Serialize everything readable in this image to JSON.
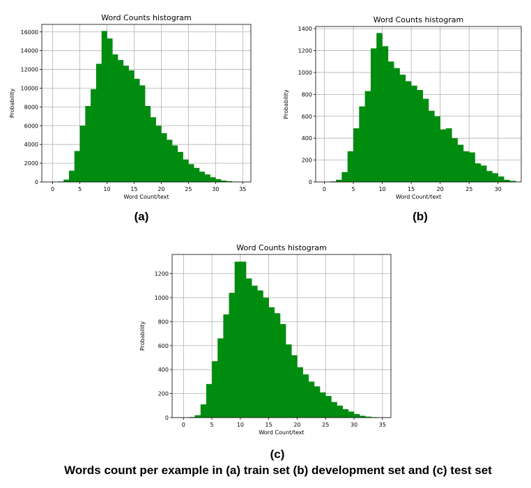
{
  "colors": {
    "bar": "#008c0f",
    "grid": "#b0b0b0",
    "frame": "#000000"
  },
  "panels": [
    {
      "label": "(a)"
    },
    {
      "label": "(b)"
    },
    {
      "label": "(c)"
    }
  ],
  "caption": "Words count per example in (a) train set (b) development set and (c) test set",
  "chart_data": [
    {
      "type": "bar",
      "title": "Word Counts histogram",
      "xlabel": "Word Count/text",
      "ylabel": "Probability",
      "grid": true,
      "xlim": [
        -2,
        36.5
      ],
      "ylim": [
        0,
        16800
      ],
      "xticks": [
        0,
        5,
        10,
        15,
        20,
        25,
        30,
        35
      ],
      "yticks": [
        0,
        2000,
        4000,
        6000,
        8000,
        10000,
        12000,
        14000,
        16000
      ],
      "bin_edges": [
        1,
        2,
        3,
        4,
        5,
        6,
        7,
        8,
        9,
        10,
        11,
        12,
        13,
        14,
        15,
        16,
        17,
        18,
        19,
        20,
        21,
        22,
        23,
        24,
        25,
        26,
        27,
        28,
        29,
        30,
        31,
        32,
        33,
        34,
        35
      ],
      "values": [
        50,
        250,
        1200,
        3300,
        6000,
        8100,
        9900,
        12600,
        16100,
        15300,
        13600,
        13000,
        12400,
        11900,
        11000,
        10300,
        8100,
        6900,
        6000,
        5200,
        4500,
        3900,
        3200,
        2400,
        1900,
        1500,
        1100,
        800,
        500,
        300,
        150,
        80,
        40,
        20
      ]
    },
    {
      "type": "bar",
      "title": "Word Counts histogram",
      "xlabel": "Word Count/text",
      "ylabel": "Probability",
      "grid": true,
      "xlim": [
        -1.5,
        34
      ],
      "ylim": [
        0,
        1420
      ],
      "xticks": [
        0,
        5,
        10,
        15,
        20,
        25,
        30
      ],
      "yticks": [
        0,
        200,
        400,
        600,
        800,
        1000,
        1200,
        1400
      ],
      "bin_edges": [
        1,
        2,
        3,
        4,
        5,
        6,
        7,
        8,
        9,
        10,
        11,
        12,
        13,
        14,
        15,
        16,
        17,
        18,
        19,
        20,
        21,
        22,
        23,
        24,
        25,
        26,
        27,
        28,
        29,
        30,
        31,
        32,
        33
      ],
      "values": [
        5,
        20,
        90,
        280,
        490,
        690,
        830,
        1220,
        1360,
        1240,
        1100,
        1040,
        980,
        920,
        880,
        840,
        760,
        650,
        600,
        480,
        490,
        400,
        340,
        280,
        270,
        170,
        150,
        100,
        80,
        50,
        20,
        10
      ]
    },
    {
      "type": "bar",
      "title": "Word Counts histogram",
      "xlabel": "Word Count/text",
      "ylabel": "Probability",
      "grid": true,
      "xlim": [
        -2,
        36.5
      ],
      "ylim": [
        0,
        1360
      ],
      "xticks": [
        0,
        5,
        10,
        15,
        20,
        25,
        30,
        35
      ],
      "yticks": [
        0,
        200,
        400,
        600,
        800,
        1000,
        1200
      ],
      "bin_edges": [
        1,
        2,
        3,
        4,
        5,
        6,
        7,
        8,
        9,
        10,
        11,
        12,
        13,
        14,
        15,
        16,
        17,
        18,
        19,
        20,
        21,
        22,
        23,
        24,
        25,
        26,
        27,
        28,
        29,
        30,
        31,
        32,
        33,
        34,
        35
      ],
      "values": [
        5,
        20,
        110,
        280,
        470,
        660,
        860,
        1040,
        1300,
        1300,
        1160,
        1100,
        1060,
        1000,
        920,
        870,
        780,
        610,
        520,
        420,
        360,
        300,
        260,
        210,
        180,
        130,
        100,
        70,
        50,
        30,
        15,
        8,
        4,
        2
      ]
    }
  ]
}
